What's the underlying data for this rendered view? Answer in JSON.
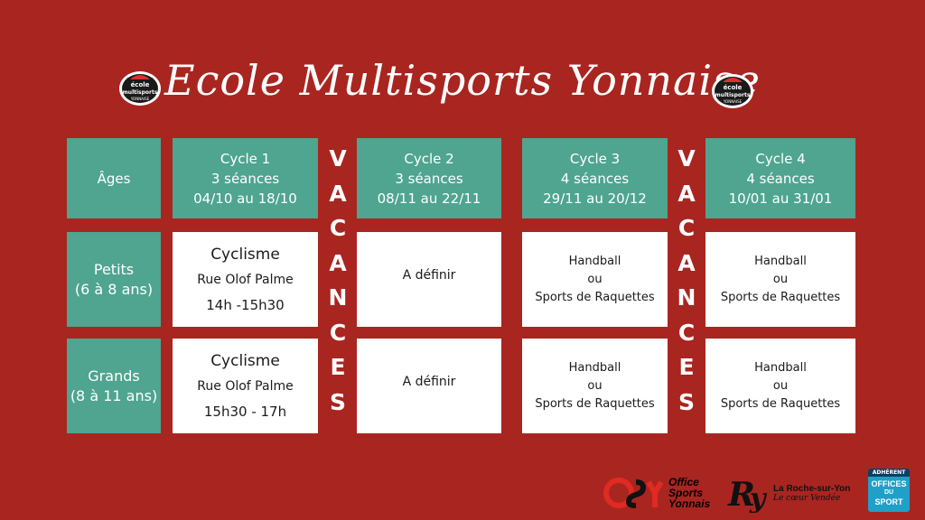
{
  "title": "Ecole Multisports Yonnaise",
  "logo": {
    "lines": [
      "école",
      "multisports",
      "YONNAISE"
    ]
  },
  "header": {
    "ages_label": "Âges",
    "cycles": [
      {
        "name": "Cycle 1",
        "sessions": "3 séances",
        "dates": "04/10 au 18/10"
      },
      {
        "name": "Cycle 2",
        "sessions": "3 séances",
        "dates": "08/11 au 22/11"
      },
      {
        "name": "Cycle 3",
        "sessions": "4 séances",
        "dates": "29/11 au 20/12"
      },
      {
        "name": "Cycle 4",
        "sessions": "4 séances",
        "dates": "10/01 au 31/01"
      }
    ]
  },
  "rows": [
    {
      "group": "Petits",
      "ages": "(6 à 8 ans)",
      "cells": [
        [
          "Cyclisme",
          "Rue Olof Palme",
          "14h -15h30"
        ],
        [
          "A définir"
        ],
        [
          "Handball",
          "ou",
          "Sports de Raquettes"
        ],
        [
          "Handball",
          "ou",
          "Sports de Raquettes"
        ]
      ]
    },
    {
      "group": "Grands",
      "ages": "(8 à 11 ans)",
      "cells": [
        [
          "Cyclisme",
          "Rue Olof Palme",
          "15h30 - 17h"
        ],
        [
          "A définir"
        ],
        [
          "Handball",
          "ou",
          "Sports de Raquettes"
        ],
        [
          "Handball",
          "ou",
          "Sports de Raquettes"
        ]
      ]
    }
  ],
  "vacances": [
    "V",
    "A",
    "C",
    "A",
    "N",
    "C",
    "E",
    "S"
  ],
  "footer": {
    "osy": {
      "mark": "OSY",
      "lines": [
        "Office",
        "Sports",
        "Yonnais"
      ]
    },
    "roche": {
      "mark": "RY",
      "name": "La Roche-sur-Yon",
      "tagline": "Le cœur Vendée"
    },
    "offices": {
      "badge": "ADHÉRENT",
      "lines": [
        "OFFICES",
        "DU",
        "SPORT"
      ]
    }
  },
  "colors": {
    "background": "#a92520",
    "green": "#4fa58f",
    "white": "#ffffff"
  }
}
